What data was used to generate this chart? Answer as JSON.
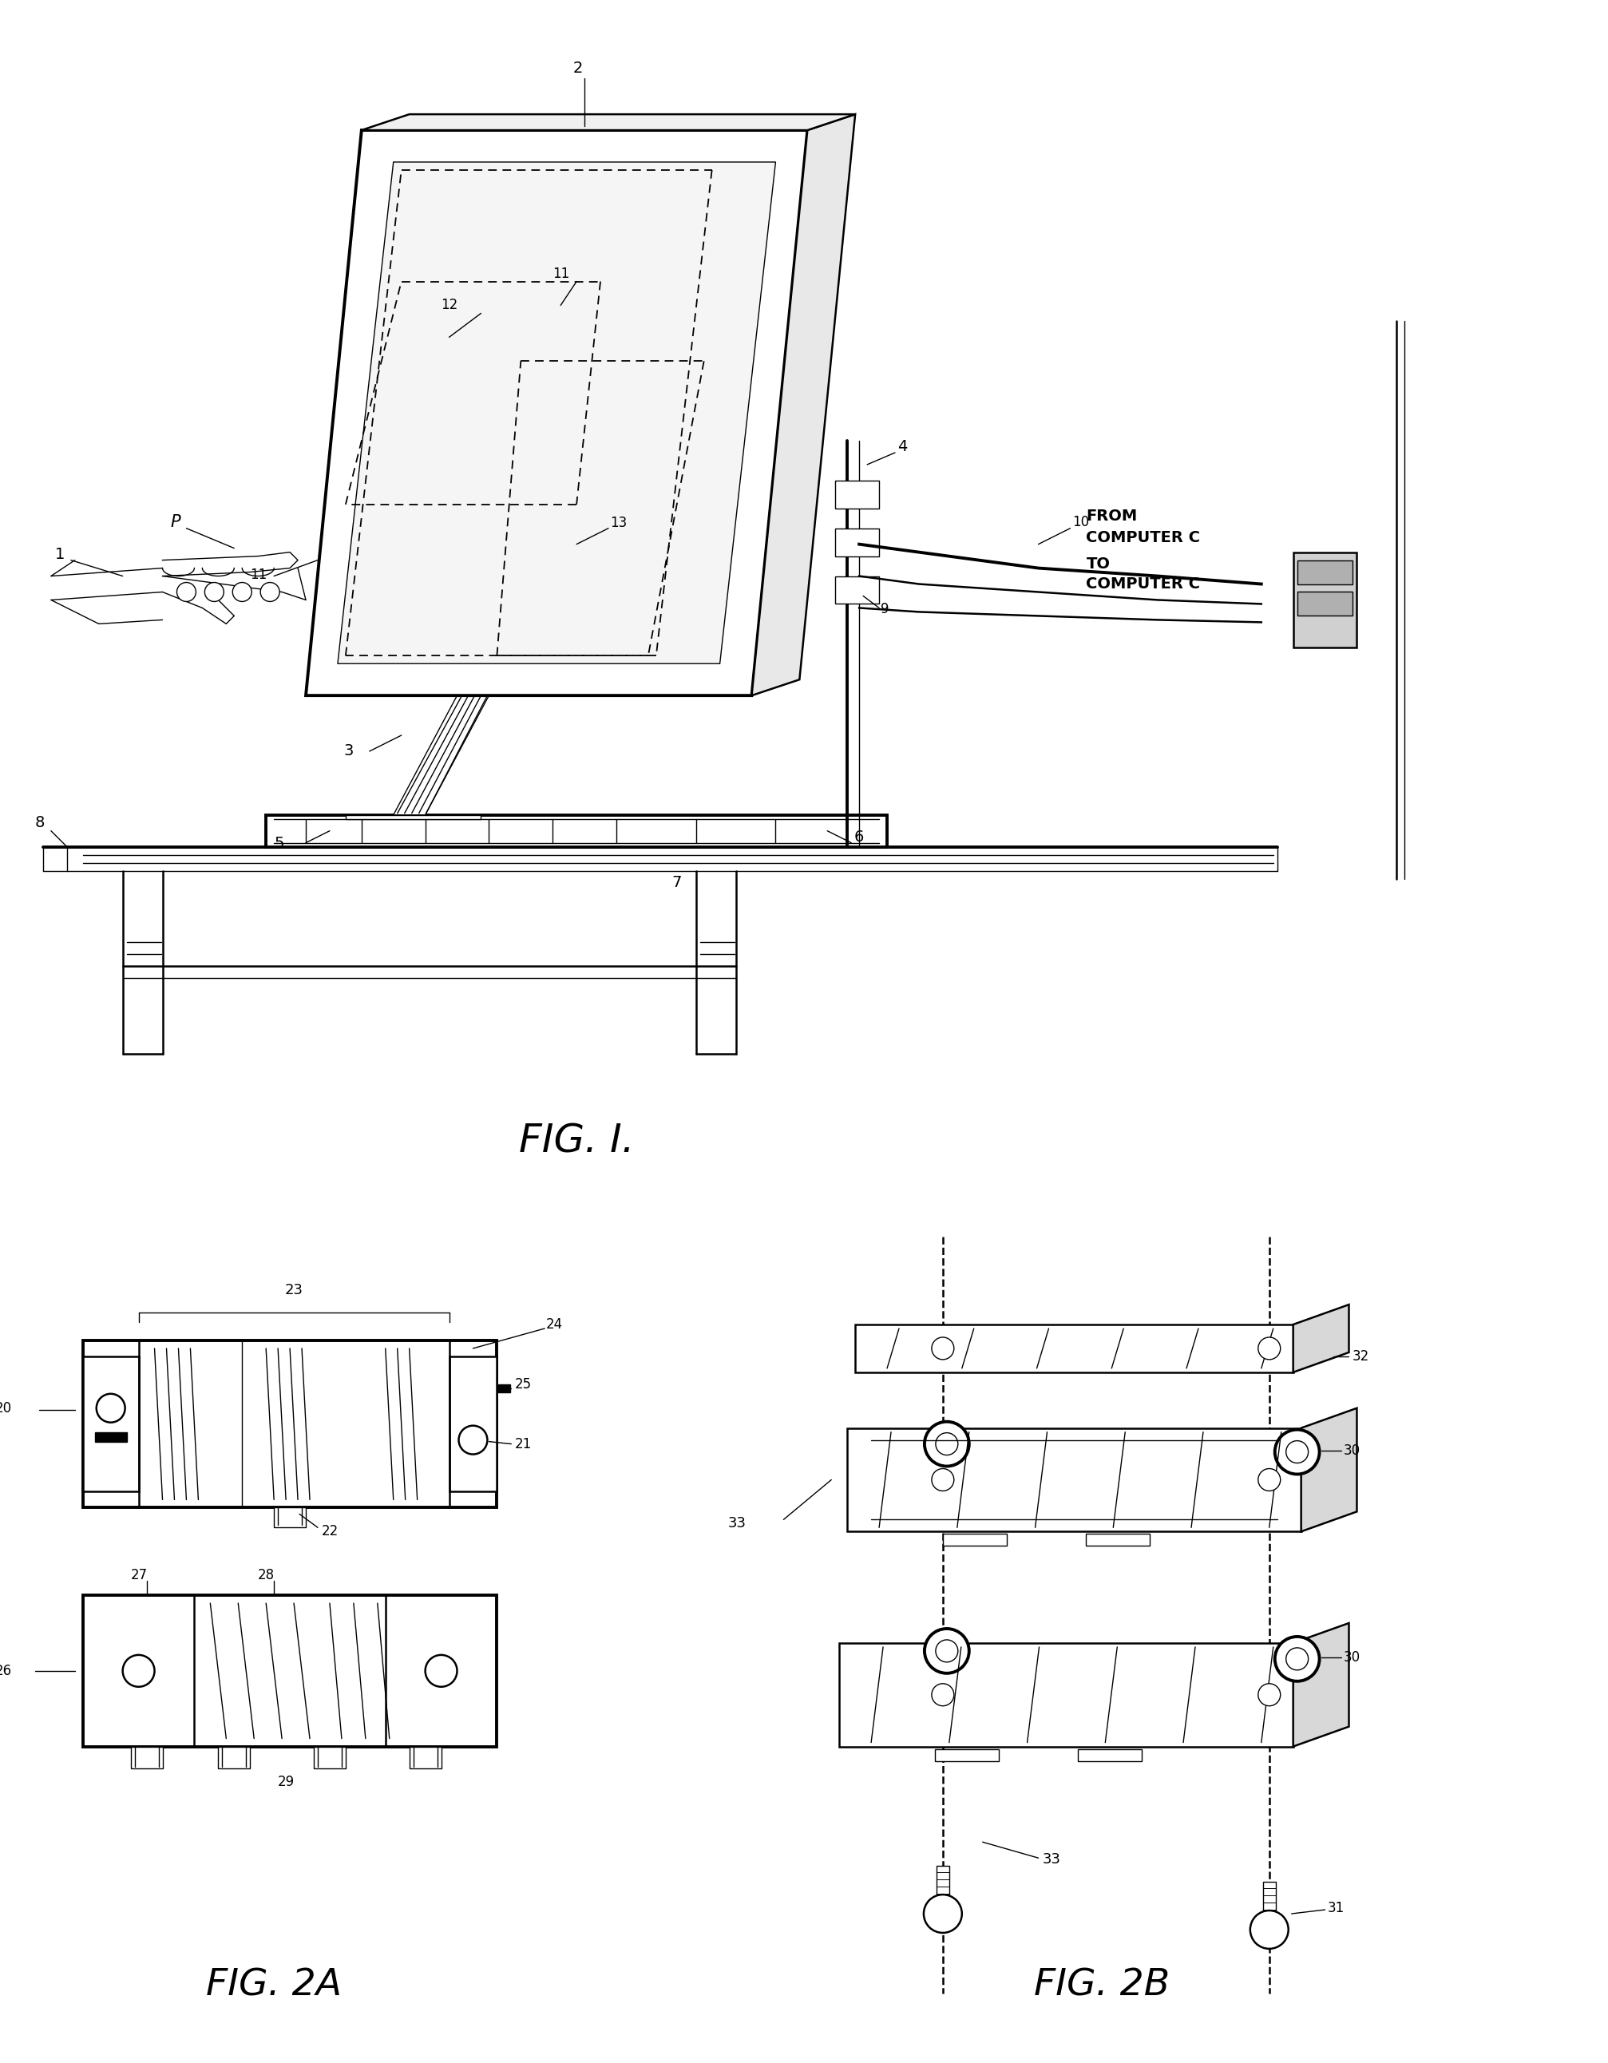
{
  "bg_color": "#ffffff",
  "fig_width": 20.14,
  "fig_height": 25.84,
  "fig1_label": "FIG. I.",
  "fig2a_label": "FIG. 2A",
  "fig2b_label": "FIG. 2B"
}
